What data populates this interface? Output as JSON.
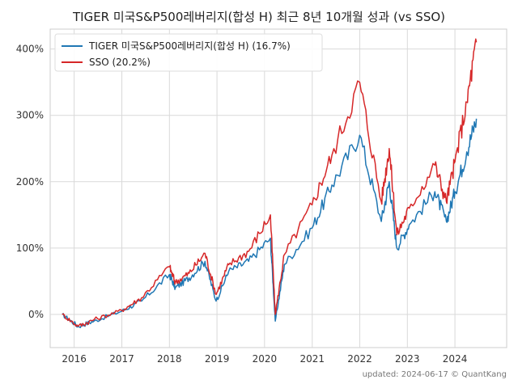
{
  "chart_data": {
    "type": "line",
    "title": "TIGER 미국S&P500레버리지(합성 H) 최근 8년 10개월 성과 (vs SSO)",
    "xlabel": "",
    "ylabel": "",
    "x_tick_labels": [
      "2016",
      "2017",
      "2018",
      "2019",
      "2020",
      "2021",
      "2022",
      "2023",
      "2024"
    ],
    "y_tick_labels": [
      "0%",
      "100%",
      "200%",
      "300%",
      "400%"
    ],
    "y_ticks": [
      0,
      100,
      200,
      300,
      400
    ],
    "xlim": [
      "2015-07-01",
      "2025-02-01"
    ],
    "ylim": [
      -50,
      430
    ],
    "grid": true,
    "legend_position": "top-left",
    "x": [
      "2015-10-01",
      "2016-02-01",
      "2016-06-01",
      "2017-01-01",
      "2017-06-01",
      "2018-01-01",
      "2018-02-15",
      "2018-06-01",
      "2018-10-01",
      "2018-12-25",
      "2019-04-01",
      "2019-09-01",
      "2020-02-15",
      "2020-03-23",
      "2020-06-01",
      "2020-12-31",
      "2021-06-01",
      "2021-12-31",
      "2022-06-15",
      "2022-08-15",
      "2022-10-12",
      "2023-01-15",
      "2023-07-31",
      "2023-10-27",
      "2024-01-01",
      "2024-04-01",
      "2024-06-14"
    ],
    "series": [
      {
        "name": "TIGER 미국S&P500레버리지(합성 H)  (16.7%)",
        "color": "#1f77b4",
        "values": [
          0,
          -18,
          -10,
          5,
          20,
          60,
          40,
          55,
          80,
          20,
          65,
          80,
          115,
          -10,
          75,
          130,
          195,
          270,
          140,
          200,
          100,
          135,
          185,
          140,
          185,
          245,
          295
        ]
      },
      {
        "name": "SSO (20.2%)",
        "color": "#d62728",
        "values": [
          0,
          -18,
          -8,
          6,
          25,
          72,
          48,
          62,
          92,
          30,
          75,
          95,
          150,
          0,
          90,
          165,
          240,
          350,
          170,
          250,
          120,
          160,
          225,
          170,
          230,
          320,
          410
        ]
      }
    ]
  },
  "footer": "updated: 2024-06-17 © QuantKang"
}
